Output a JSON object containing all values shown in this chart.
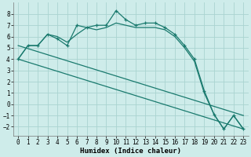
{
  "xlabel": "Humidex (Indice chaleur)",
  "bg_color": "#ceecea",
  "grid_color": "#aad4d0",
  "line_color": "#1a7a6e",
  "x_ticks": [
    0,
    1,
    2,
    3,
    4,
    5,
    6,
    7,
    8,
    9,
    10,
    11,
    12,
    13,
    14,
    15,
    16,
    17,
    18,
    19,
    20,
    21,
    22,
    23
  ],
  "y_ticks": [
    -2,
    -1,
    0,
    1,
    2,
    3,
    4,
    5,
    6,
    7,
    8
  ],
  "ylim": [
    -2.8,
    9.0
  ],
  "xlim": [
    -0.5,
    23.5
  ],
  "curve1_x": [
    0,
    1,
    2,
    3,
    4,
    5,
    6,
    7,
    8,
    9,
    10,
    11,
    12,
    13,
    14,
    15,
    16,
    17,
    18,
    19,
    20,
    21,
    22,
    23
  ],
  "curve1_y": [
    4.0,
    5.2,
    5.2,
    6.2,
    5.8,
    5.2,
    7.0,
    6.8,
    7.0,
    7.0,
    8.3,
    7.5,
    7.0,
    7.2,
    7.2,
    6.8,
    6.2,
    5.2,
    4.0,
    1.2,
    -0.9,
    -2.2,
    -1.0,
    -2.2
  ],
  "curve2_x": [
    0,
    1,
    2,
    3,
    4,
    5,
    6,
    7,
    8,
    9,
    10,
    11,
    12,
    13,
    14,
    15,
    16,
    17,
    18,
    19,
    20,
    21,
    22,
    23
  ],
  "curve2_y": [
    4.0,
    5.2,
    5.2,
    6.2,
    6.0,
    5.5,
    6.2,
    6.8,
    6.6,
    6.8,
    7.2,
    7.0,
    6.8,
    6.8,
    6.8,
    6.6,
    6.0,
    5.0,
    3.8,
    1.0,
    -0.9,
    -2.2,
    -1.0,
    -2.2
  ],
  "line3": [
    [
      0,
      4.0
    ],
    [
      23,
      -2.2
    ]
  ],
  "line4": [
    [
      0,
      5.2
    ],
    [
      23,
      -1.0
    ]
  ]
}
